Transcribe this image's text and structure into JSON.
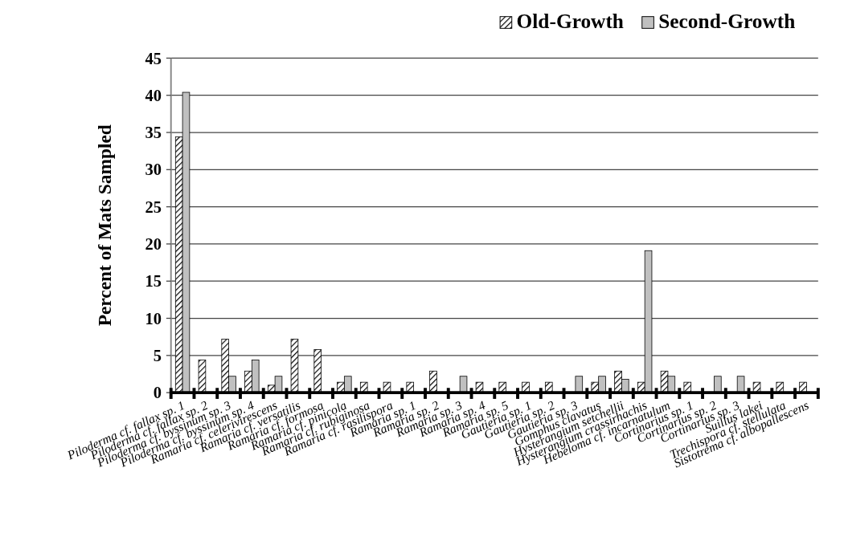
{
  "chart_data": {
    "type": "bar",
    "ylabel": "Percent of Mats Sampled",
    "categories": [
      "Piloderma cf. fallax sp. 1",
      "Piloderma cf. fallax sp. 2",
      "Piloderma cf. byssinum sp. 3",
      "Piloderma cf. byssinum sp. 4",
      "Ramaria cf. celerivirescens",
      "Ramaria cf. versatilis",
      "Ramaria cf. formosa",
      "Ramaria cf. pinicola",
      "Ramaria cf. rubiginosa",
      "Ramaria cf. rasilispora",
      "Ramaria sp. 1",
      "Ramaria sp. 2",
      "Ramaria sp. 3",
      "Ramaria sp. 4",
      "Ramaria sp. 5",
      "Gautieria sp. 1",
      "Gautieria sp. 2",
      "Gautieria sp. 3",
      "Gomphus clavatus",
      "Hysterangium setchellii",
      "Hysterangium crassirhachis",
      "Hebeloma cf. incarnatulum",
      "Cortinarius sp. 1",
      "Cortinarius sp. 2",
      "Cortinarius sp. 3",
      "Suillus lakei",
      "Trechispora cf. stellulata",
      "Sistotrema cf. albopallescens"
    ],
    "series": [
      {
        "name": "Old-Growth",
        "color": "#000000",
        "values": [
          34.4,
          4.4,
          7.2,
          2.9,
          1.0,
          7.2,
          5.8,
          1.4,
          1.4,
          1.4,
          1.4,
          2.9,
          0,
          1.4,
          1.4,
          1.4,
          1.4,
          0,
          1.4,
          2.9,
          1.4,
          2.9,
          1.4,
          0,
          0,
          1.4,
          1.4,
          1.4
        ]
      },
      {
        "name": "Second-Growth",
        "color": "#c0c0c0",
        "values": [
          40.4,
          0,
          2.2,
          4.4,
          2.2,
          0,
          0,
          2.2,
          0,
          0,
          0,
          0,
          2.2,
          0,
          0,
          0,
          0,
          2.2,
          2.2,
          1.8,
          19.1,
          2.2,
          0,
          2.2,
          2.2,
          0,
          0,
          0
        ]
      }
    ],
    "ylim": [
      0,
      45
    ],
    "yticks": [
      0,
      5,
      10,
      15,
      20,
      25,
      30,
      35,
      40,
      45
    ],
    "grid": "y",
    "legend": "top right"
  }
}
